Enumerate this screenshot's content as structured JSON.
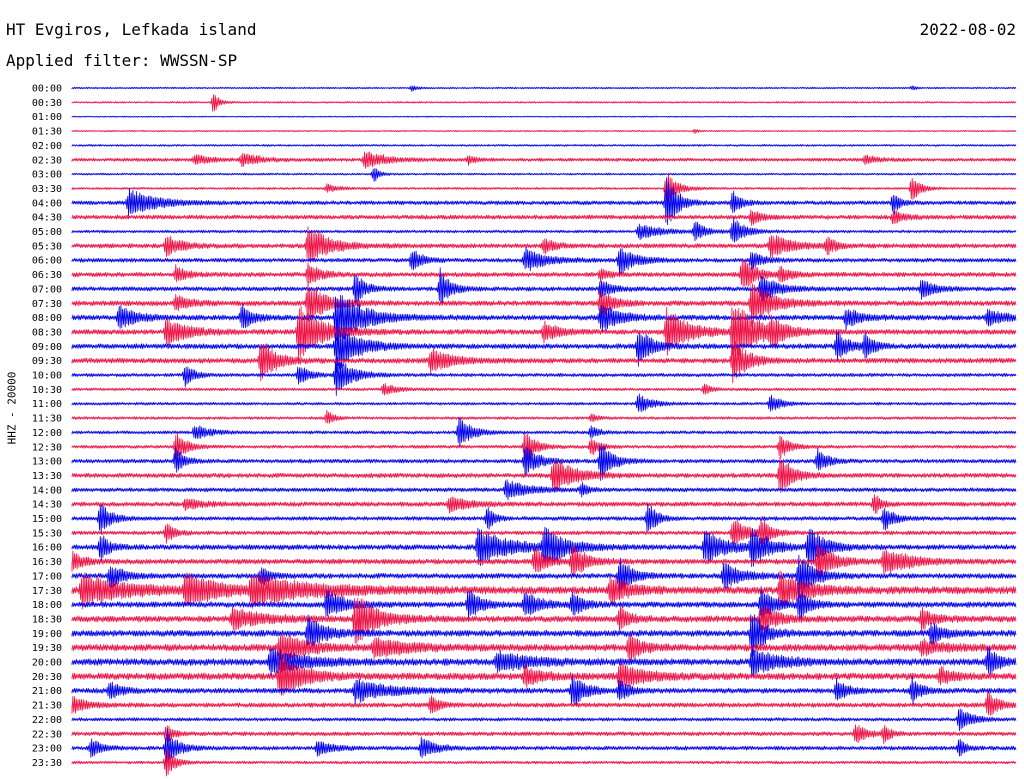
{
  "header": {
    "station": "HT Evgiros, Lefkada island",
    "date": "2022-08-02",
    "filter": "Applied filter: WWSSN-SP"
  },
  "channel": "HHZ - 20000",
  "colors": {
    "even": "#0000ee",
    "odd": "#ee1144"
  },
  "chart_data": {
    "type": "line",
    "title": "HT Evgiros, Lefkada island",
    "subtitle": "Applied filter: WWSSN-SP",
    "ylabel": "HHZ - 20000",
    "xlabel": "",
    "grid": false,
    "legend": "none",
    "tick_labels": [
      "00:00",
      "00:30",
      "01:00",
      "01:30",
      "02:00",
      "02:30",
      "03:00",
      "03:30",
      "04:00",
      "04:30",
      "05:00",
      "05:30",
      "06:00",
      "06:30",
      "07:00",
      "07:30",
      "08:00",
      "08:30",
      "09:00",
      "09:30",
      "10:00",
      "10:30",
      "11:00",
      "11:30",
      "12:00",
      "12:30",
      "13:00",
      "13:30",
      "14:00",
      "14:30",
      "15:00",
      "15:30",
      "16:00",
      "16:30",
      "17:00",
      "17:30",
      "18:00",
      "18:30",
      "19:00",
      "19:30",
      "20:00",
      "20:30",
      "21:00",
      "21:30",
      "22:00",
      "22:30",
      "23:00",
      "23:30"
    ],
    "traces": [
      {
        "noise": 0.6,
        "events": [
          [
            0.36,
            3,
            5
          ],
          [
            0.89,
            2,
            4
          ]
        ]
      },
      {
        "noise": 0.6,
        "events": [
          [
            0.15,
            12,
            5
          ]
        ]
      },
      {
        "noise": 0.4,
        "events": []
      },
      {
        "noise": 0.5,
        "events": [
          [
            0.66,
            2,
            4
          ]
        ]
      },
      {
        "noise": 0.7,
        "events": []
      },
      {
        "noise": 1.2,
        "events": [
          [
            0.13,
            5,
            14
          ],
          [
            0.18,
            7,
            16
          ],
          [
            0.31,
            9,
            20
          ],
          [
            0.42,
            4,
            8
          ],
          [
            0.84,
            5,
            10
          ]
        ]
      },
      {
        "noise": 0.7,
        "events": [
          [
            0.32,
            8,
            5
          ]
        ]
      },
      {
        "noise": 0.8,
        "events": [
          [
            0.27,
            4,
            12
          ],
          [
            0.63,
            18,
            10
          ],
          [
            0.89,
            14,
            8
          ]
        ]
      },
      {
        "noise": 1.4,
        "events": [
          [
            0.06,
            14,
            25
          ],
          [
            0.63,
            30,
            10
          ],
          [
            0.7,
            12,
            8
          ],
          [
            0.87,
            12,
            6
          ]
        ]
      },
      {
        "noise": 1.5,
        "events": [
          [
            0.72,
            9,
            8
          ],
          [
            0.87,
            7,
            10
          ]
        ]
      },
      {
        "noise": 1.0,
        "events": [
          [
            0.6,
            8,
            20
          ],
          [
            0.66,
            10,
            10
          ],
          [
            0.7,
            14,
            12
          ]
        ]
      },
      {
        "noise": 1.6,
        "events": [
          [
            0.1,
            10,
            14
          ],
          [
            0.25,
            20,
            20
          ],
          [
            0.5,
            8,
            10
          ],
          [
            0.74,
            12,
            20
          ],
          [
            0.8,
            10,
            8
          ]
        ]
      },
      {
        "noise": 1.4,
        "events": [
          [
            0.36,
            12,
            10
          ],
          [
            0.48,
            12,
            20
          ],
          [
            0.58,
            14,
            16
          ],
          [
            0.72,
            10,
            10
          ]
        ]
      },
      {
        "noise": 1.6,
        "events": [
          [
            0.11,
            9,
            10
          ],
          [
            0.25,
            12,
            12
          ],
          [
            0.56,
            6,
            8
          ],
          [
            0.71,
            18,
            12
          ],
          [
            0.75,
            8,
            10
          ]
        ]
      },
      {
        "noise": 1.5,
        "events": [
          [
            0.3,
            16,
            10
          ],
          [
            0.39,
            20,
            10
          ],
          [
            0.56,
            10,
            10
          ],
          [
            0.73,
            14,
            16
          ],
          [
            0.9,
            10,
            12
          ]
        ]
      },
      {
        "noise": 1.8,
        "events": [
          [
            0.11,
            8,
            14
          ],
          [
            0.25,
            20,
            18
          ],
          [
            0.56,
            14,
            12
          ],
          [
            0.72,
            22,
            20
          ]
        ]
      },
      {
        "noise": 1.8,
        "events": [
          [
            0.05,
            12,
            16
          ],
          [
            0.18,
            14,
            10
          ],
          [
            0.28,
            30,
            24
          ],
          [
            0.56,
            14,
            18
          ],
          [
            0.82,
            10,
            14
          ],
          [
            0.97,
            8,
            16
          ]
        ]
      },
      {
        "noise": 1.8,
        "events": [
          [
            0.1,
            14,
            20
          ],
          [
            0.24,
            30,
            22
          ],
          [
            0.5,
            10,
            14
          ],
          [
            0.63,
            24,
            20
          ],
          [
            0.7,
            30,
            24
          ],
          [
            0.74,
            12,
            12
          ]
        ]
      },
      {
        "noise": 1.8,
        "events": [
          [
            0.28,
            26,
            20
          ],
          [
            0.6,
            20,
            12
          ],
          [
            0.81,
            14,
            12
          ],
          [
            0.84,
            14,
            8
          ]
        ]
      },
      {
        "noise": 1.8,
        "events": [
          [
            0.2,
            22,
            14
          ],
          [
            0.38,
            12,
            20
          ],
          [
            0.7,
            22,
            14
          ]
        ]
      },
      {
        "noise": 1.2,
        "events": [
          [
            0.12,
            12,
            8
          ],
          [
            0.24,
            10,
            10
          ],
          [
            0.28,
            22,
            14
          ]
        ]
      },
      {
        "noise": 1.0,
        "events": [
          [
            0.33,
            6,
            12
          ],
          [
            0.67,
            6,
            6
          ]
        ]
      },
      {
        "noise": 1.0,
        "events": [
          [
            0.6,
            10,
            12
          ],
          [
            0.74,
            10,
            10
          ]
        ]
      },
      {
        "noise": 1.0,
        "events": [
          [
            0.27,
            8,
            6
          ],
          [
            0.55,
            4,
            6
          ]
        ]
      },
      {
        "noise": 1.1,
        "events": [
          [
            0.13,
            8,
            14
          ],
          [
            0.41,
            16,
            12
          ],
          [
            0.55,
            6,
            8
          ]
        ]
      },
      {
        "noise": 1.1,
        "events": [
          [
            0.11,
            16,
            10
          ],
          [
            0.48,
            18,
            10
          ],
          [
            0.55,
            10,
            8
          ],
          [
            0.75,
            12,
            10
          ]
        ]
      },
      {
        "noise": 1.4,
        "events": [
          [
            0.11,
            14,
            8
          ],
          [
            0.48,
            16,
            12
          ],
          [
            0.56,
            20,
            12
          ],
          [
            0.79,
            12,
            10
          ]
        ]
      },
      {
        "noise": 1.6,
        "events": [
          [
            0.51,
            18,
            20
          ],
          [
            0.75,
            22,
            12
          ]
        ]
      },
      {
        "noise": 1.4,
        "events": [
          [
            0.46,
            10,
            20
          ],
          [
            0.54,
            8,
            6
          ]
        ]
      },
      {
        "noise": 1.6,
        "events": [
          [
            0.12,
            6,
            14
          ],
          [
            0.4,
            8,
            18
          ],
          [
            0.85,
            12,
            6
          ]
        ]
      },
      {
        "noise": 1.4,
        "events": [
          [
            0.03,
            16,
            10
          ],
          [
            0.44,
            14,
            6
          ],
          [
            0.61,
            20,
            8
          ],
          [
            0.86,
            12,
            10
          ]
        ]
      },
      {
        "noise": 1.4,
        "events": [
          [
            0.1,
            10,
            8
          ],
          [
            0.7,
            16,
            12
          ],
          [
            0.73,
            14,
            10
          ]
        ]
      },
      {
        "noise": 1.8,
        "events": [
          [
            0.03,
            14,
            8
          ],
          [
            0.43,
            18,
            30
          ],
          [
            0.5,
            20,
            20
          ],
          [
            0.67,
            18,
            20
          ],
          [
            0.72,
            20,
            16
          ],
          [
            0.78,
            20,
            16
          ]
        ]
      },
      {
        "noise": 1.8,
        "events": [
          [
            0.0,
            10,
            10
          ],
          [
            0.49,
            14,
            12
          ],
          [
            0.53,
            16,
            14
          ],
          [
            0.79,
            18,
            16
          ],
          [
            0.86,
            14,
            24
          ]
        ]
      },
      {
        "noise": 1.8,
        "events": [
          [
            0.04,
            12,
            14
          ],
          [
            0.2,
            10,
            8
          ],
          [
            0.58,
            18,
            12
          ],
          [
            0.69,
            14,
            18
          ],
          [
            0.77,
            20,
            16
          ]
        ]
      },
      {
        "noise": 2.6,
        "events": [
          [
            0.01,
            16,
            40
          ],
          [
            0.12,
            16,
            30
          ],
          [
            0.19,
            14,
            60
          ],
          [
            0.57,
            14,
            18
          ],
          [
            0.75,
            18,
            24
          ]
        ]
      },
      {
        "noise": 2.0,
        "events": [
          [
            0.27,
            14,
            16
          ],
          [
            0.42,
            16,
            12
          ],
          [
            0.48,
            14,
            14
          ],
          [
            0.53,
            12,
            10
          ],
          [
            0.73,
            18,
            12
          ],
          [
            0.77,
            16,
            10
          ]
        ]
      },
      {
        "noise": 2.2,
        "events": [
          [
            0.17,
            10,
            30
          ],
          [
            0.3,
            26,
            20
          ],
          [
            0.58,
            12,
            10
          ],
          [
            0.73,
            16,
            14
          ],
          [
            0.9,
            10,
            12
          ]
        ]
      },
      {
        "noise": 2.2,
        "events": [
          [
            0.25,
            16,
            16
          ],
          [
            0.72,
            24,
            12
          ],
          [
            0.91,
            10,
            12
          ]
        ]
      },
      {
        "noise": 2.4,
        "events": [
          [
            0.22,
            16,
            24
          ],
          [
            0.32,
            10,
            30
          ],
          [
            0.59,
            14,
            12
          ],
          [
            0.9,
            8,
            20
          ]
        ]
      },
      {
        "noise": 2.4,
        "events": [
          [
            0.21,
            14,
            30
          ],
          [
            0.45,
            10,
            30
          ],
          [
            0.72,
            14,
            24
          ],
          [
            0.97,
            14,
            10
          ]
        ]
      },
      {
        "noise": 2.4,
        "events": [
          [
            0.22,
            24,
            20
          ],
          [
            0.48,
            10,
            16
          ],
          [
            0.58,
            12,
            24
          ],
          [
            0.92,
            8,
            12
          ]
        ]
      },
      {
        "noise": 1.8,
        "events": [
          [
            0.04,
            10,
            10
          ],
          [
            0.3,
            12,
            30
          ],
          [
            0.53,
            18,
            12
          ],
          [
            0.58,
            12,
            8
          ],
          [
            0.81,
            12,
            10
          ],
          [
            0.89,
            14,
            8
          ]
        ]
      },
      {
        "noise": 1.6,
        "events": [
          [
            0.0,
            10,
            12
          ],
          [
            0.38,
            10,
            8
          ],
          [
            0.97,
            14,
            10
          ]
        ]
      },
      {
        "noise": 1.2,
        "events": [
          [
            0.94,
            12,
            12
          ]
        ]
      },
      {
        "noise": 1.4,
        "events": [
          [
            0.1,
            10,
            6
          ],
          [
            0.83,
            10,
            10
          ],
          [
            0.86,
            10,
            6
          ]
        ]
      },
      {
        "noise": 1.4,
        "events": [
          [
            0.02,
            10,
            10
          ],
          [
            0.1,
            22,
            10
          ],
          [
            0.26,
            8,
            14
          ],
          [
            0.37,
            10,
            14
          ],
          [
            0.94,
            10,
            6
          ]
        ]
      },
      {
        "noise": 1.0,
        "events": [
          [
            0.1,
            16,
            8
          ]
        ]
      }
    ]
  }
}
